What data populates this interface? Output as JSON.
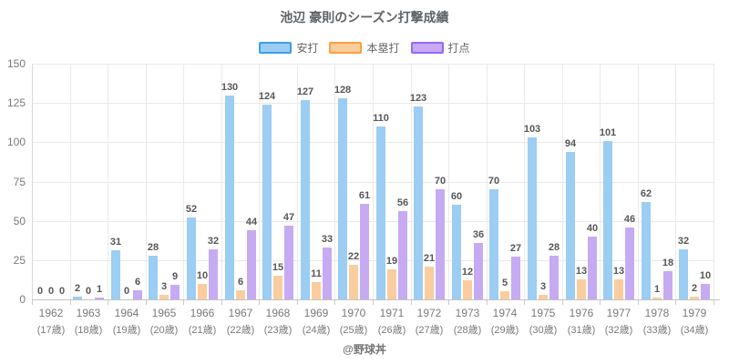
{
  "title": "池辺 豪則のシーズン打撃成績",
  "footer": "@野球丼",
  "legend": {
    "items": [
      {
        "label": "安打",
        "fill": "#9ccdf3",
        "border": "#36a2eb"
      },
      {
        "label": "本塁打",
        "fill": "#facd9e",
        "border": "#ff9f40"
      },
      {
        "label": "打点",
        "fill": "#c6abf3",
        "border": "#9966ff"
      }
    ]
  },
  "chart_data": {
    "type": "bar",
    "title": "池辺 豪則のシーズン打撃成績",
    "categories": [
      "1962",
      "1963",
      "1964",
      "1965",
      "1966",
      "1967",
      "1968",
      "1969",
      "1970",
      "1971",
      "1972",
      "1973",
      "1974",
      "1975",
      "1976",
      "1977",
      "1978",
      "1979"
    ],
    "category_sublabels": [
      "(17歳)",
      "(18歳)",
      "(19歳)",
      "(20歳)",
      "(21歳)",
      "(22歳)",
      "(23歳)",
      "(24歳)",
      "(25歳)",
      "(26歳)",
      "(27歳)",
      "(28歳)",
      "(29歳)",
      "(30歳)",
      "(31歳)",
      "(32歳)",
      "(33歳)",
      "(34歳)"
    ],
    "series": [
      {
        "name": "安打",
        "color": "#9ccdf3",
        "values": [
          0,
          2,
          31,
          28,
          52,
          130,
          124,
          127,
          128,
          110,
          123,
          60,
          70,
          103,
          94,
          101,
          62,
          32
        ]
      },
      {
        "name": "本塁打",
        "color": "#facd9e",
        "values": [
          0,
          0,
          0,
          3,
          10,
          6,
          15,
          11,
          22,
          19,
          21,
          12,
          5,
          3,
          13,
          13,
          1,
          2
        ]
      },
      {
        "name": "打点",
        "color": "#c6abf3",
        "values": [
          0,
          1,
          6,
          9,
          32,
          44,
          47,
          33,
          61,
          56,
          70,
          36,
          27,
          28,
          40,
          46,
          18,
          10
        ]
      }
    ],
    "xlabel": "",
    "ylabel": "",
    "ylim": [
      0,
      150
    ],
    "yticks": [
      0,
      25,
      50,
      75,
      100,
      125,
      150
    ],
    "grid": true,
    "legend_position": "top",
    "value_labels": true
  }
}
